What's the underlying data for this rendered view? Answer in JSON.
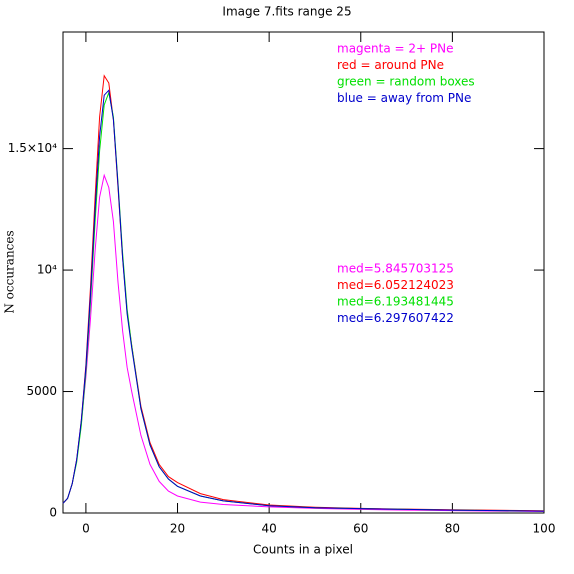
{
  "chart_data": {
    "type": "line",
    "title": "Image 7.fits   range 25",
    "xlabel": "Counts in a pixel",
    "ylabel": "N occurances",
    "x": [
      -5,
      -4,
      -3,
      -2,
      -1,
      0,
      1,
      2,
      3,
      4,
      5,
      6,
      7,
      8,
      9,
      10,
      12,
      14,
      16,
      18,
      20,
      25,
      30,
      40,
      50,
      60,
      70,
      80,
      90,
      100
    ],
    "series": [
      {
        "name": "magenta = 2+ PNe",
        "color": "#ff00ff",
        "values": [
          400,
          600,
          1200,
          2200,
          3700,
          5600,
          8000,
          10800,
          13000,
          13900,
          13400,
          12000,
          9500,
          7500,
          6000,
          5000,
          3200,
          2000,
          1300,
          900,
          700,
          450,
          350,
          250,
          190,
          150,
          120,
          100,
          80,
          60
        ]
      },
      {
        "name": "red = around PNe",
        "color": "#ff0000",
        "values": [
          400,
          600,
          1200,
          2200,
          3800,
          6100,
          9300,
          13000,
          16300,
          18000,
          17700,
          16200,
          13400,
          10500,
          8300,
          6900,
          4400,
          2900,
          2000,
          1500,
          1250,
          800,
          550,
          330,
          240,
          190,
          160,
          130,
          110,
          90
        ]
      },
      {
        "name": "green = random boxes",
        "color": "#00e000",
        "values": [
          400,
          600,
          1200,
          2100,
          3600,
          5800,
          8700,
          12000,
          14900,
          16800,
          17300,
          16300,
          13600,
          10700,
          8400,
          6900,
          4300,
          2800,
          1900,
          1400,
          1100,
          700,
          500,
          300,
          220,
          180,
          150,
          120,
          100,
          80
        ]
      },
      {
        "name": "blue = away from PNe",
        "color": "#0000cc",
        "values": [
          400,
          600,
          1200,
          2200,
          3800,
          6000,
          9000,
          12500,
          15500,
          17200,
          17400,
          16200,
          13500,
          10500,
          8200,
          6800,
          4300,
          2800,
          1900,
          1400,
          1100,
          700,
          500,
          300,
          220,
          180,
          150,
          120,
          100,
          80
        ]
      }
    ],
    "annotations": [
      "med=5.845703125",
      "med=6.052124023",
      "med=6.193481445",
      "med=6.297607422"
    ],
    "xlim": [
      -5,
      100
    ],
    "xticks": [
      0,
      20,
      40,
      60,
      80,
      100
    ],
    "ylim": [
      0,
      19800
    ],
    "yticks": [
      0,
      5000,
      {
        "value": 10000,
        "label": "10⁴"
      },
      {
        "value": 15000,
        "label": "1.5×10⁴"
      }
    ]
  }
}
